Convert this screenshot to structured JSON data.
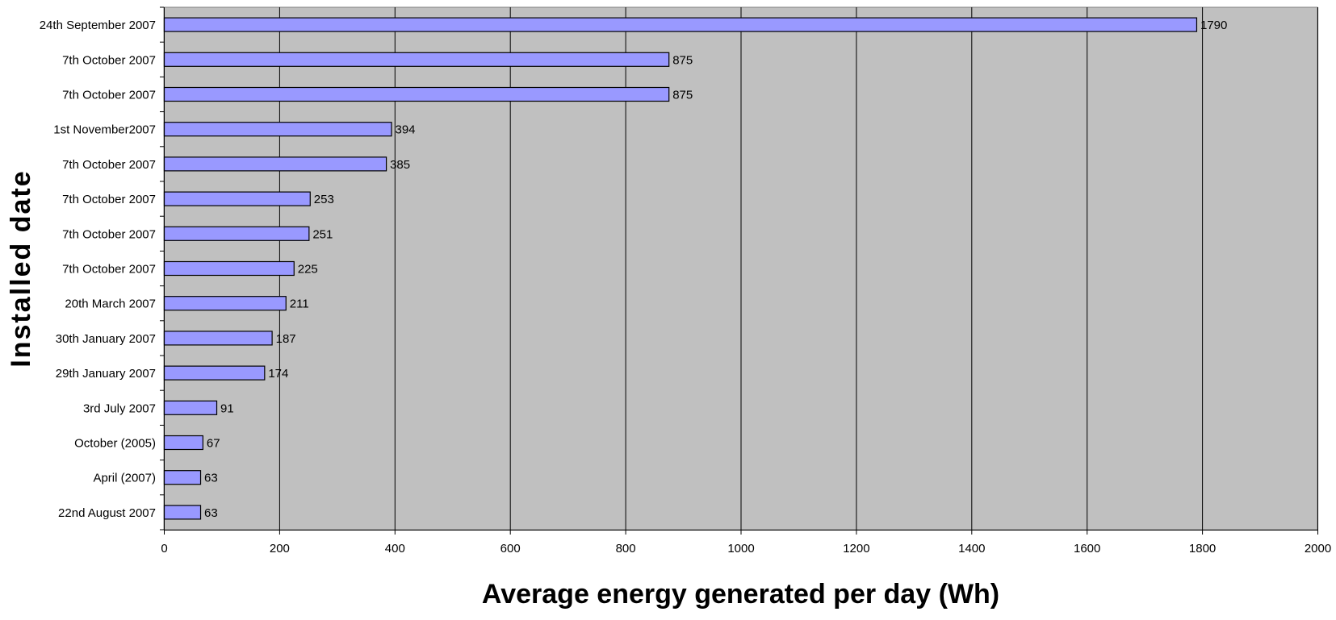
{
  "chart_data": {
    "type": "bar",
    "orientation": "horizontal",
    "categories": [
      "24th September 2007",
      "7th October 2007",
      "7th October 2007",
      "1st November2007",
      "7th October 2007",
      "7th October 2007",
      "7th October 2007",
      "7th October 2007",
      "20th March 2007",
      "30th January 2007",
      "29th January 2007",
      "3rd July 2007",
      "October (2005)",
      "April (2007)",
      "22nd August 2007"
    ],
    "values": [
      1790,
      875,
      875,
      394,
      385,
      253,
      251,
      225,
      211,
      187,
      174,
      91,
      67,
      63,
      63
    ],
    "data_labels": [
      "1790",
      "875",
      "875",
      "394",
      "385",
      "253",
      "251",
      "225",
      "211",
      "187",
      "174",
      "91",
      "67",
      "63",
      "63"
    ],
    "xlabel": "Average energy generated per day (Wh)",
    "ylabel": "Installed date",
    "xlim": [
      0,
      2000
    ],
    "xticks": [
      0,
      200,
      400,
      600,
      800,
      1000,
      1200,
      1400,
      1600,
      1800,
      2000
    ],
    "xtick_labels": [
      "0",
      "200",
      "400",
      "600",
      "800",
      "1000",
      "1200",
      "1400",
      "1600",
      "1800",
      "2000"
    ],
    "grid": "vertical major gridlines",
    "legend": "none",
    "colors": {
      "bar_fill": "#9999ff",
      "bar_stroke": "#000000",
      "plot_background": "#c0c0c0",
      "gridline": "#000000"
    }
  }
}
